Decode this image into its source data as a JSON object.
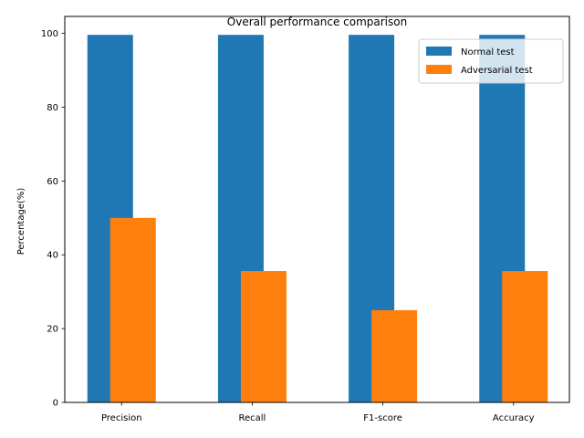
{
  "chart_data": {
    "type": "bar",
    "title": "Overall performance comparison",
    "xlabel": "",
    "ylabel": "Percentage(%)",
    "categories": [
      "Precision",
      "Recall",
      "F1-score",
      "Accuracy"
    ],
    "series": [
      {
        "name": "Normal test",
        "values": [
          99.6,
          99.6,
          99.6,
          99.6
        ],
        "color": "#1f77b4"
      },
      {
        "name": "Adversarial test",
        "values": [
          50.0,
          35.6,
          25.0,
          35.6
        ],
        "color": "#ff7f0e"
      }
    ],
    "ylim": [
      0,
      104.6
    ],
    "yticks": [
      0,
      20,
      40,
      60,
      80,
      100
    ],
    "grid": false,
    "legend_position": "top-right"
  }
}
